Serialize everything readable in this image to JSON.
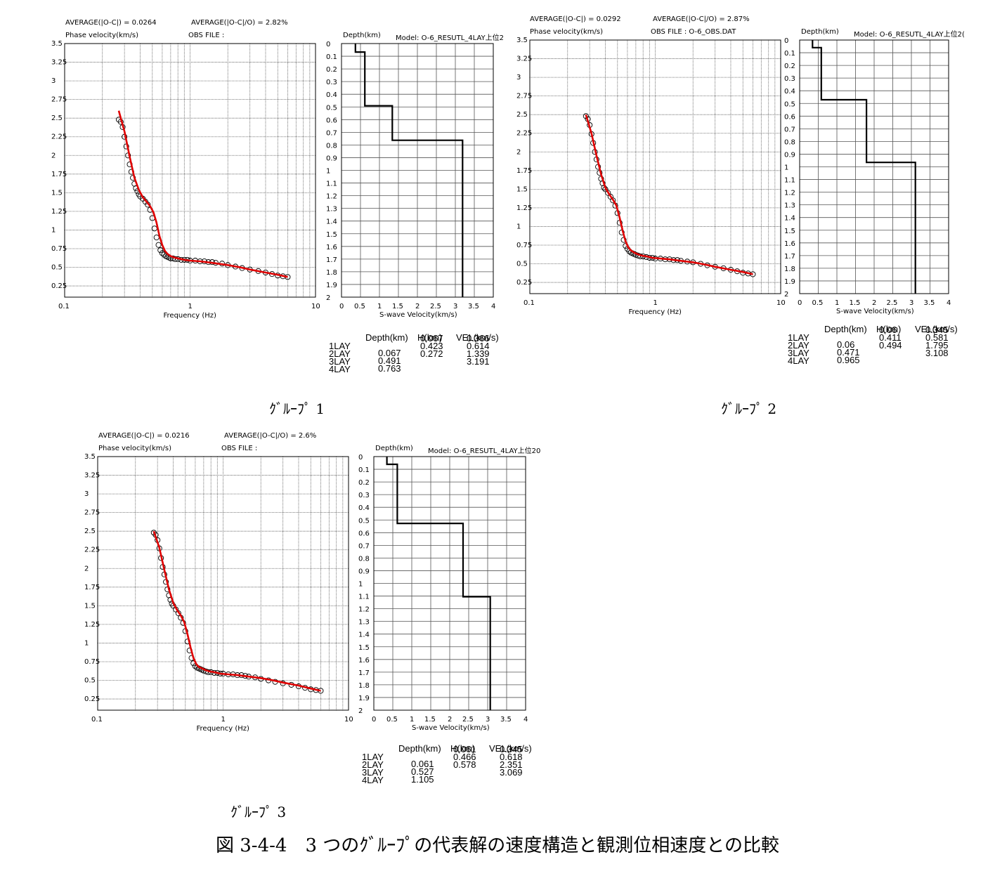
{
  "figure_caption": "図 3-4-4　3 つのｸﾞﾙｰﾌﾟの代表解の速度構造と観測位相速度との比較",
  "common": {
    "phase_velocity_label": "Phase velocity(km/s)",
    "frequency_label": "Frequency (Hz)",
    "depth_label": "Depth(km)",
    "swave_label": "S-wave Velocity(km/s)",
    "table_headers": {
      "depth": "Depth(km)",
      "h": "H(km)",
      "vel": "VEL(km/s)"
    },
    "freq_ticks": [
      "0.1",
      "1",
      "10"
    ],
    "pv_ticks": [
      "0.25",
      "0.5",
      "0.75",
      "1",
      "1.25",
      "1.5",
      "1.75",
      "2",
      "2.25",
      "2.5",
      "2.75",
      "3",
      "3.25",
      "3.5"
    ],
    "depth_ticks": [
      "0",
      "0.1",
      "0.2",
      "0.3",
      "0.4",
      "0.5",
      "0.6",
      "0.7",
      "0.8",
      "0.9",
      "1",
      "1.1",
      "1.2",
      "1.3",
      "1.4",
      "1.5",
      "1.6",
      "1.7",
      "1.8",
      "1.9",
      "2"
    ],
    "vs_ticks": [
      "0",
      "0.5",
      "1",
      "1.5",
      "2",
      "2.5",
      "3",
      "3.5",
      "4"
    ],
    "colors": {
      "observed": "#000000",
      "theoretical": "#e00000",
      "profile": "#000000",
      "grid": "#555555"
    }
  },
  "groups": [
    {
      "label": "ｸﾞﾙｰﾌﾟ 1",
      "avg_abs": "AVERAGE(|O-C|) = 0.0264",
      "avg_rel": "AVERAGE(|O-C|/O) = 2.82%",
      "obs_file": "OBS FILE :",
      "model": "Model: O-6_RESUTL_4LAY上位2",
      "layers": [
        {
          "name": "1LAY",
          "depth": "",
          "h": "0.067",
          "vel": "0.366"
        },
        {
          "name": "2LAY",
          "depth": "0.067",
          "h": "0.423",
          "vel": "0.614"
        },
        {
          "name": "3LAY",
          "depth": "0.491",
          "h": "0.272",
          "vel": "1.339"
        },
        {
          "name": "4LAY",
          "depth": "0.763",
          "h": "",
          "vel": "3.191"
        }
      ]
    },
    {
      "label": "ｸﾞﾙｰﾌﾟ 2",
      "avg_abs": "AVERAGE(|O-C|) = 0.0292",
      "avg_rel": "AVERAGE(|O-C|/O) = 2.87%",
      "obs_file": "OBS FILE : O-6_OBS.DAT",
      "model": "Model: O-6_RESUTL_4LAY上位2(",
      "layers": [
        {
          "name": "1LAY",
          "depth": "",
          "h": "0.06",
          "vel": "0.345"
        },
        {
          "name": "2LAY",
          "depth": "0.06",
          "h": "0.411",
          "vel": "0.581"
        },
        {
          "name": "3LAY",
          "depth": "0.471",
          "h": "0.494",
          "vel": "1.795"
        },
        {
          "name": "4LAY",
          "depth": "0.965",
          "h": "",
          "vel": "3.108"
        }
      ]
    },
    {
      "label": "ｸﾞﾙｰﾌﾟ 3",
      "avg_abs": "AVERAGE(|O-C|) = 0.0216",
      "avg_rel": "AVERAGE(|O-C|/O) = 2.6%",
      "obs_file": "OBS FILE :",
      "model": "Model: O-6_RESUTL_4LAY上位20",
      "layers": [
        {
          "name": "1LAY",
          "depth": "",
          "h": "0.061",
          "vel": "0.345"
        },
        {
          "name": "2LAY",
          "depth": "0.061",
          "h": "0.466",
          "vel": "0.618"
        },
        {
          "name": "3LAY",
          "depth": "0.527",
          "h": "0.578",
          "vel": "2.351"
        },
        {
          "name": "4LAY",
          "depth": "1.105",
          "h": "",
          "vel": "3.069"
        }
      ]
    }
  ],
  "chart_data": [
    {
      "type": "scatter",
      "group": "ｸﾞﾙｰﾌﾟ 1",
      "xlabel": "Frequency (Hz)",
      "ylabel": "Phase velocity(km/s)",
      "xscale": "log",
      "xlim": [
        0.1,
        10
      ],
      "ylim": [
        0.1,
        3.5
      ],
      "grid": true,
      "series": [
        {
          "x": [
            0.27,
            0.28,
            0.29,
            0.3,
            0.31,
            0.32,
            0.33,
            0.34,
            0.35,
            0.36,
            0.37,
            0.38,
            0.39,
            0.4,
            0.42,
            0.44,
            0.46,
            0.48,
            0.5,
            0.52,
            0.54,
            0.56,
            0.58,
            0.6,
            0.62,
            0.64,
            0.66,
            0.68,
            0.7,
            0.73,
            0.76,
            0.8,
            0.85,
            0.9,
            0.95,
            1.0,
            1.1,
            1.2,
            1.3,
            1.4,
            1.5,
            1.6,
            1.8,
            2.0,
            2.3,
            2.6,
            3.0,
            3.5,
            4.0,
            4.5,
            5.0,
            5.5,
            6.0
          ],
          "values": [
            2.48,
            2.45,
            2.38,
            2.25,
            2.12,
            2.0,
            1.88,
            1.78,
            1.7,
            1.62,
            1.56,
            1.52,
            1.48,
            1.45,
            1.42,
            1.38,
            1.34,
            1.27,
            1.16,
            1.02,
            0.9,
            0.8,
            0.73,
            0.69,
            0.67,
            0.65,
            0.64,
            0.63,
            0.62,
            0.62,
            0.61,
            0.61,
            0.6,
            0.6,
            0.6,
            0.59,
            0.59,
            0.58,
            0.58,
            0.57,
            0.57,
            0.56,
            0.55,
            0.53,
            0.51,
            0.49,
            0.47,
            0.45,
            0.43,
            0.41,
            0.39,
            0.38,
            0.37
          ]
        },
        {
          "x": [
            0.27,
            0.3,
            0.33,
            0.36,
            0.39,
            0.42,
            0.45,
            0.48,
            0.51,
            0.54,
            0.57,
            0.6,
            0.63,
            0.66,
            0.7,
            0.75,
            0.8,
            0.9,
            1.0,
            1.2,
            1.5,
            2.0,
            2.5,
            3.0,
            4.0,
            5.0,
            6.0
          ],
          "values": [
            2.6,
            2.32,
            1.98,
            1.7,
            1.54,
            1.44,
            1.38,
            1.32,
            1.24,
            1.1,
            0.92,
            0.8,
            0.72,
            0.68,
            0.65,
            0.63,
            0.62,
            0.6,
            0.59,
            0.58,
            0.56,
            0.53,
            0.5,
            0.47,
            0.43,
            0.4,
            0.37
          ]
        }
      ]
    },
    {
      "type": "line",
      "group": "ｸﾞﾙｰﾌﾟ 1",
      "xlabel": "S-wave Velocity(km/s)",
      "ylabel": "Depth(km)",
      "xlim": [
        0,
        4
      ],
      "ylim": [
        2,
        0
      ],
      "grid": true,
      "series": [
        {
          "x": [
            0.366,
            0.366,
            0.614,
            0.614,
            1.339,
            1.339,
            3.191,
            3.191
          ],
          "values": [
            0,
            0.067,
            0.067,
            0.491,
            0.491,
            0.763,
            0.763,
            2.0
          ]
        }
      ]
    },
    {
      "type": "scatter",
      "group": "ｸﾞﾙｰﾌﾟ 2",
      "xlabel": "Frequency (Hz)",
      "ylabel": "Phase velocity(km/s)",
      "xscale": "log",
      "xlim": [
        0.1,
        10
      ],
      "ylim": [
        0.1,
        3.5
      ],
      "grid": true,
      "series": [
        {
          "x": [
            0.28,
            0.29,
            0.3,
            0.31,
            0.32,
            0.33,
            0.34,
            0.35,
            0.36,
            0.37,
            0.38,
            0.39,
            0.4,
            0.42,
            0.44,
            0.46,
            0.48,
            0.5,
            0.52,
            0.54,
            0.56,
            0.58,
            0.6,
            0.62,
            0.64,
            0.66,
            0.68,
            0.7,
            0.73,
            0.76,
            0.8,
            0.85,
            0.9,
            0.95,
            1.0,
            1.1,
            1.2,
            1.3,
            1.4,
            1.5,
            1.6,
            1.8,
            2.0,
            2.3,
            2.6,
            3.0,
            3.5,
            4.0,
            4.5,
            5.0,
            5.5,
            6.0
          ],
          "values": [
            2.48,
            2.44,
            2.36,
            2.24,
            2.12,
            2.0,
            1.9,
            1.8,
            1.72,
            1.64,
            1.58,
            1.52,
            1.5,
            1.45,
            1.4,
            1.35,
            1.28,
            1.18,
            1.05,
            0.92,
            0.82,
            0.74,
            0.7,
            0.67,
            0.65,
            0.64,
            0.63,
            0.62,
            0.61,
            0.6,
            0.6,
            0.59,
            0.58,
            0.58,
            0.57,
            0.57,
            0.56,
            0.56,
            0.55,
            0.55,
            0.54,
            0.53,
            0.52,
            0.5,
            0.48,
            0.46,
            0.44,
            0.42,
            0.4,
            0.38,
            0.37,
            0.36
          ]
        },
        {
          "x": [
            0.28,
            0.31,
            0.34,
            0.37,
            0.4,
            0.43,
            0.46,
            0.49,
            0.52,
            0.55,
            0.58,
            0.61,
            0.64,
            0.68,
            0.72,
            0.78,
            0.85,
            0.95,
            1.1,
            1.3,
            1.6,
            2.0,
            2.5,
            3.0,
            4.0,
            5.0,
            6.0
          ],
          "values": [
            2.5,
            2.25,
            1.95,
            1.7,
            1.52,
            1.43,
            1.36,
            1.28,
            1.12,
            0.94,
            0.8,
            0.72,
            0.68,
            0.65,
            0.63,
            0.61,
            0.6,
            0.58,
            0.57,
            0.56,
            0.54,
            0.52,
            0.49,
            0.46,
            0.42,
            0.39,
            0.36
          ]
        }
      ]
    },
    {
      "type": "line",
      "group": "ｸﾞﾙｰﾌﾟ 2",
      "xlabel": "S-wave Velocity(km/s)",
      "ylabel": "Depth(km)",
      "xlim": [
        0,
        4
      ],
      "ylim": [
        2,
        0
      ],
      "grid": true,
      "series": [
        {
          "x": [
            0.345,
            0.345,
            0.581,
            0.581,
            1.795,
            1.795,
            3.108,
            3.108
          ],
          "values": [
            0,
            0.06,
            0.06,
            0.471,
            0.471,
            0.965,
            0.965,
            2.0
          ]
        }
      ]
    },
    {
      "type": "scatter",
      "group": "ｸﾞﾙｰﾌﾟ 3",
      "xlabel": "Frequency (Hz)",
      "ylabel": "Phase velocity(km/s)",
      "xscale": "log",
      "xlim": [
        0.1,
        10
      ],
      "ylim": [
        0.1,
        3.5
      ],
      "grid": true,
      "series": [
        {
          "x": [
            0.28,
            0.29,
            0.3,
            0.31,
            0.32,
            0.33,
            0.34,
            0.35,
            0.36,
            0.37,
            0.38,
            0.39,
            0.4,
            0.42,
            0.44,
            0.46,
            0.48,
            0.5,
            0.52,
            0.54,
            0.56,
            0.58,
            0.6,
            0.62,
            0.64,
            0.66,
            0.68,
            0.7,
            0.73,
            0.76,
            0.8,
            0.85,
            0.9,
            0.95,
            1.0,
            1.1,
            1.2,
            1.3,
            1.4,
            1.5,
            1.6,
            1.8,
            2.0,
            2.3,
            2.6,
            3.0,
            3.5,
            4.0,
            4.5,
            5.0,
            5.5,
            6.0
          ],
          "values": [
            2.48,
            2.45,
            2.38,
            2.27,
            2.14,
            2.02,
            1.92,
            1.82,
            1.72,
            1.64,
            1.58,
            1.53,
            1.5,
            1.45,
            1.4,
            1.34,
            1.27,
            1.16,
            1.02,
            0.9,
            0.8,
            0.73,
            0.69,
            0.67,
            0.66,
            0.65,
            0.64,
            0.63,
            0.62,
            0.61,
            0.61,
            0.6,
            0.6,
            0.59,
            0.59,
            0.58,
            0.58,
            0.57,
            0.57,
            0.56,
            0.55,
            0.54,
            0.52,
            0.5,
            0.48,
            0.46,
            0.44,
            0.42,
            0.4,
            0.38,
            0.37,
            0.36
          ]
        },
        {
          "x": [
            0.28,
            0.31,
            0.34,
            0.37,
            0.4,
            0.43,
            0.46,
            0.49,
            0.52,
            0.55,
            0.58,
            0.61,
            0.64,
            0.68,
            0.72,
            0.78,
            0.85,
            0.95,
            1.1,
            1.3,
            1.6,
            2.0,
            2.5,
            3.0,
            4.0,
            5.0,
            6.0
          ],
          "values": [
            2.5,
            2.28,
            1.98,
            1.72,
            1.54,
            1.44,
            1.37,
            1.28,
            1.12,
            0.94,
            0.8,
            0.72,
            0.68,
            0.66,
            0.64,
            0.62,
            0.61,
            0.59,
            0.58,
            0.57,
            0.55,
            0.53,
            0.5,
            0.47,
            0.43,
            0.39,
            0.36
          ]
        }
      ]
    },
    {
      "type": "line",
      "group": "ｸﾞﾙｰﾌﾟ 3",
      "xlabel": "S-wave Velocity(km/s)",
      "ylabel": "Depth(km)",
      "xlim": [
        0,
        4
      ],
      "ylim": [
        2,
        0
      ],
      "grid": true,
      "series": [
        {
          "x": [
            0.345,
            0.345,
            0.618,
            0.618,
            2.351,
            2.351,
            3.069,
            3.069
          ],
          "values": [
            0,
            0.061,
            0.061,
            0.527,
            0.527,
            1.105,
            1.105,
            2.0
          ]
        }
      ]
    }
  ]
}
